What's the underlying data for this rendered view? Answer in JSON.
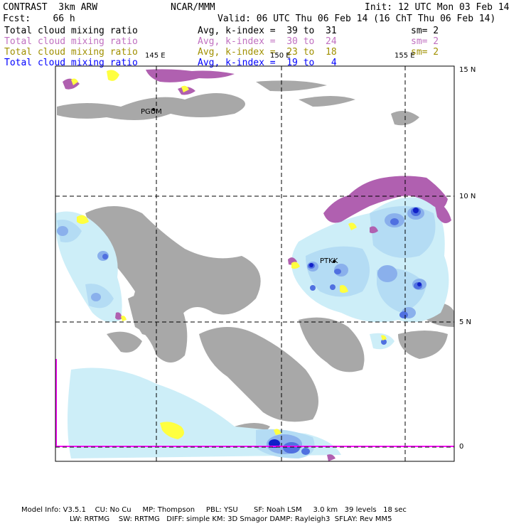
{
  "header": {
    "model": "CONTRAST  3km ARW",
    "center": "NCAR/MMM",
    "init": "Init: 12 UTC Mon 03 Feb 14",
    "fcst": "Fcst:    66 h",
    "valid": "Valid: 06 UTC Thu 06 Feb 14 (16 ChT Thu 06 Feb 14)"
  },
  "fields": [
    {
      "name": "Total cloud mixing ratio",
      "avg": "Avg, k-index =  39 to  31",
      "sm": "sm= 2",
      "color": "#000000"
    },
    {
      "name": "Total cloud mixing ratio",
      "avg": "Avg, k-index =  30 to  24",
      "sm": "sm= 2",
      "color": "#c070c0"
    },
    {
      "name": "Total cloud mixing ratio",
      "avg": "Avg, k-index =  23 to  18",
      "sm": "sm= 2",
      "color": "#a09000"
    },
    {
      "name": "Total cloud mixing ratio",
      "avg": "Avg, k-index =  19 to   4",
      "sm": "",
      "color": "#0000ff"
    }
  ],
  "map": {
    "lon_labels": [
      "145 E",
      "150 E",
      "155 E"
    ],
    "lat_labels": [
      "15 N",
      "10 N",
      "5 N",
      "0"
    ],
    "stations": [
      "PGUM",
      "PTKK"
    ]
  },
  "colors": {
    "gray": "#a8a8a8",
    "lightcyan": "#cdeef8",
    "cyan2": "#b4dcf4",
    "blue1": "#8ab0ec",
    "blue2": "#5070e0",
    "blue3": "#1020c8",
    "purple": "#b060b0",
    "yellow": "#ffff40",
    "magenta": "#ff00ff"
  },
  "footer": {
    "line1": "Model Info: V3.5.1    CU: No Cu     MP: Thompson     PBL: YSU       SF: Noah LSM     3.0 km   39 levels   18 sec",
    "line2": "LW: RRTMG    SW: RRTMG   DIFF: simple KM: 3D Smagor DAMP: Rayleigh3  SFLAY: Rev MM5"
  }
}
